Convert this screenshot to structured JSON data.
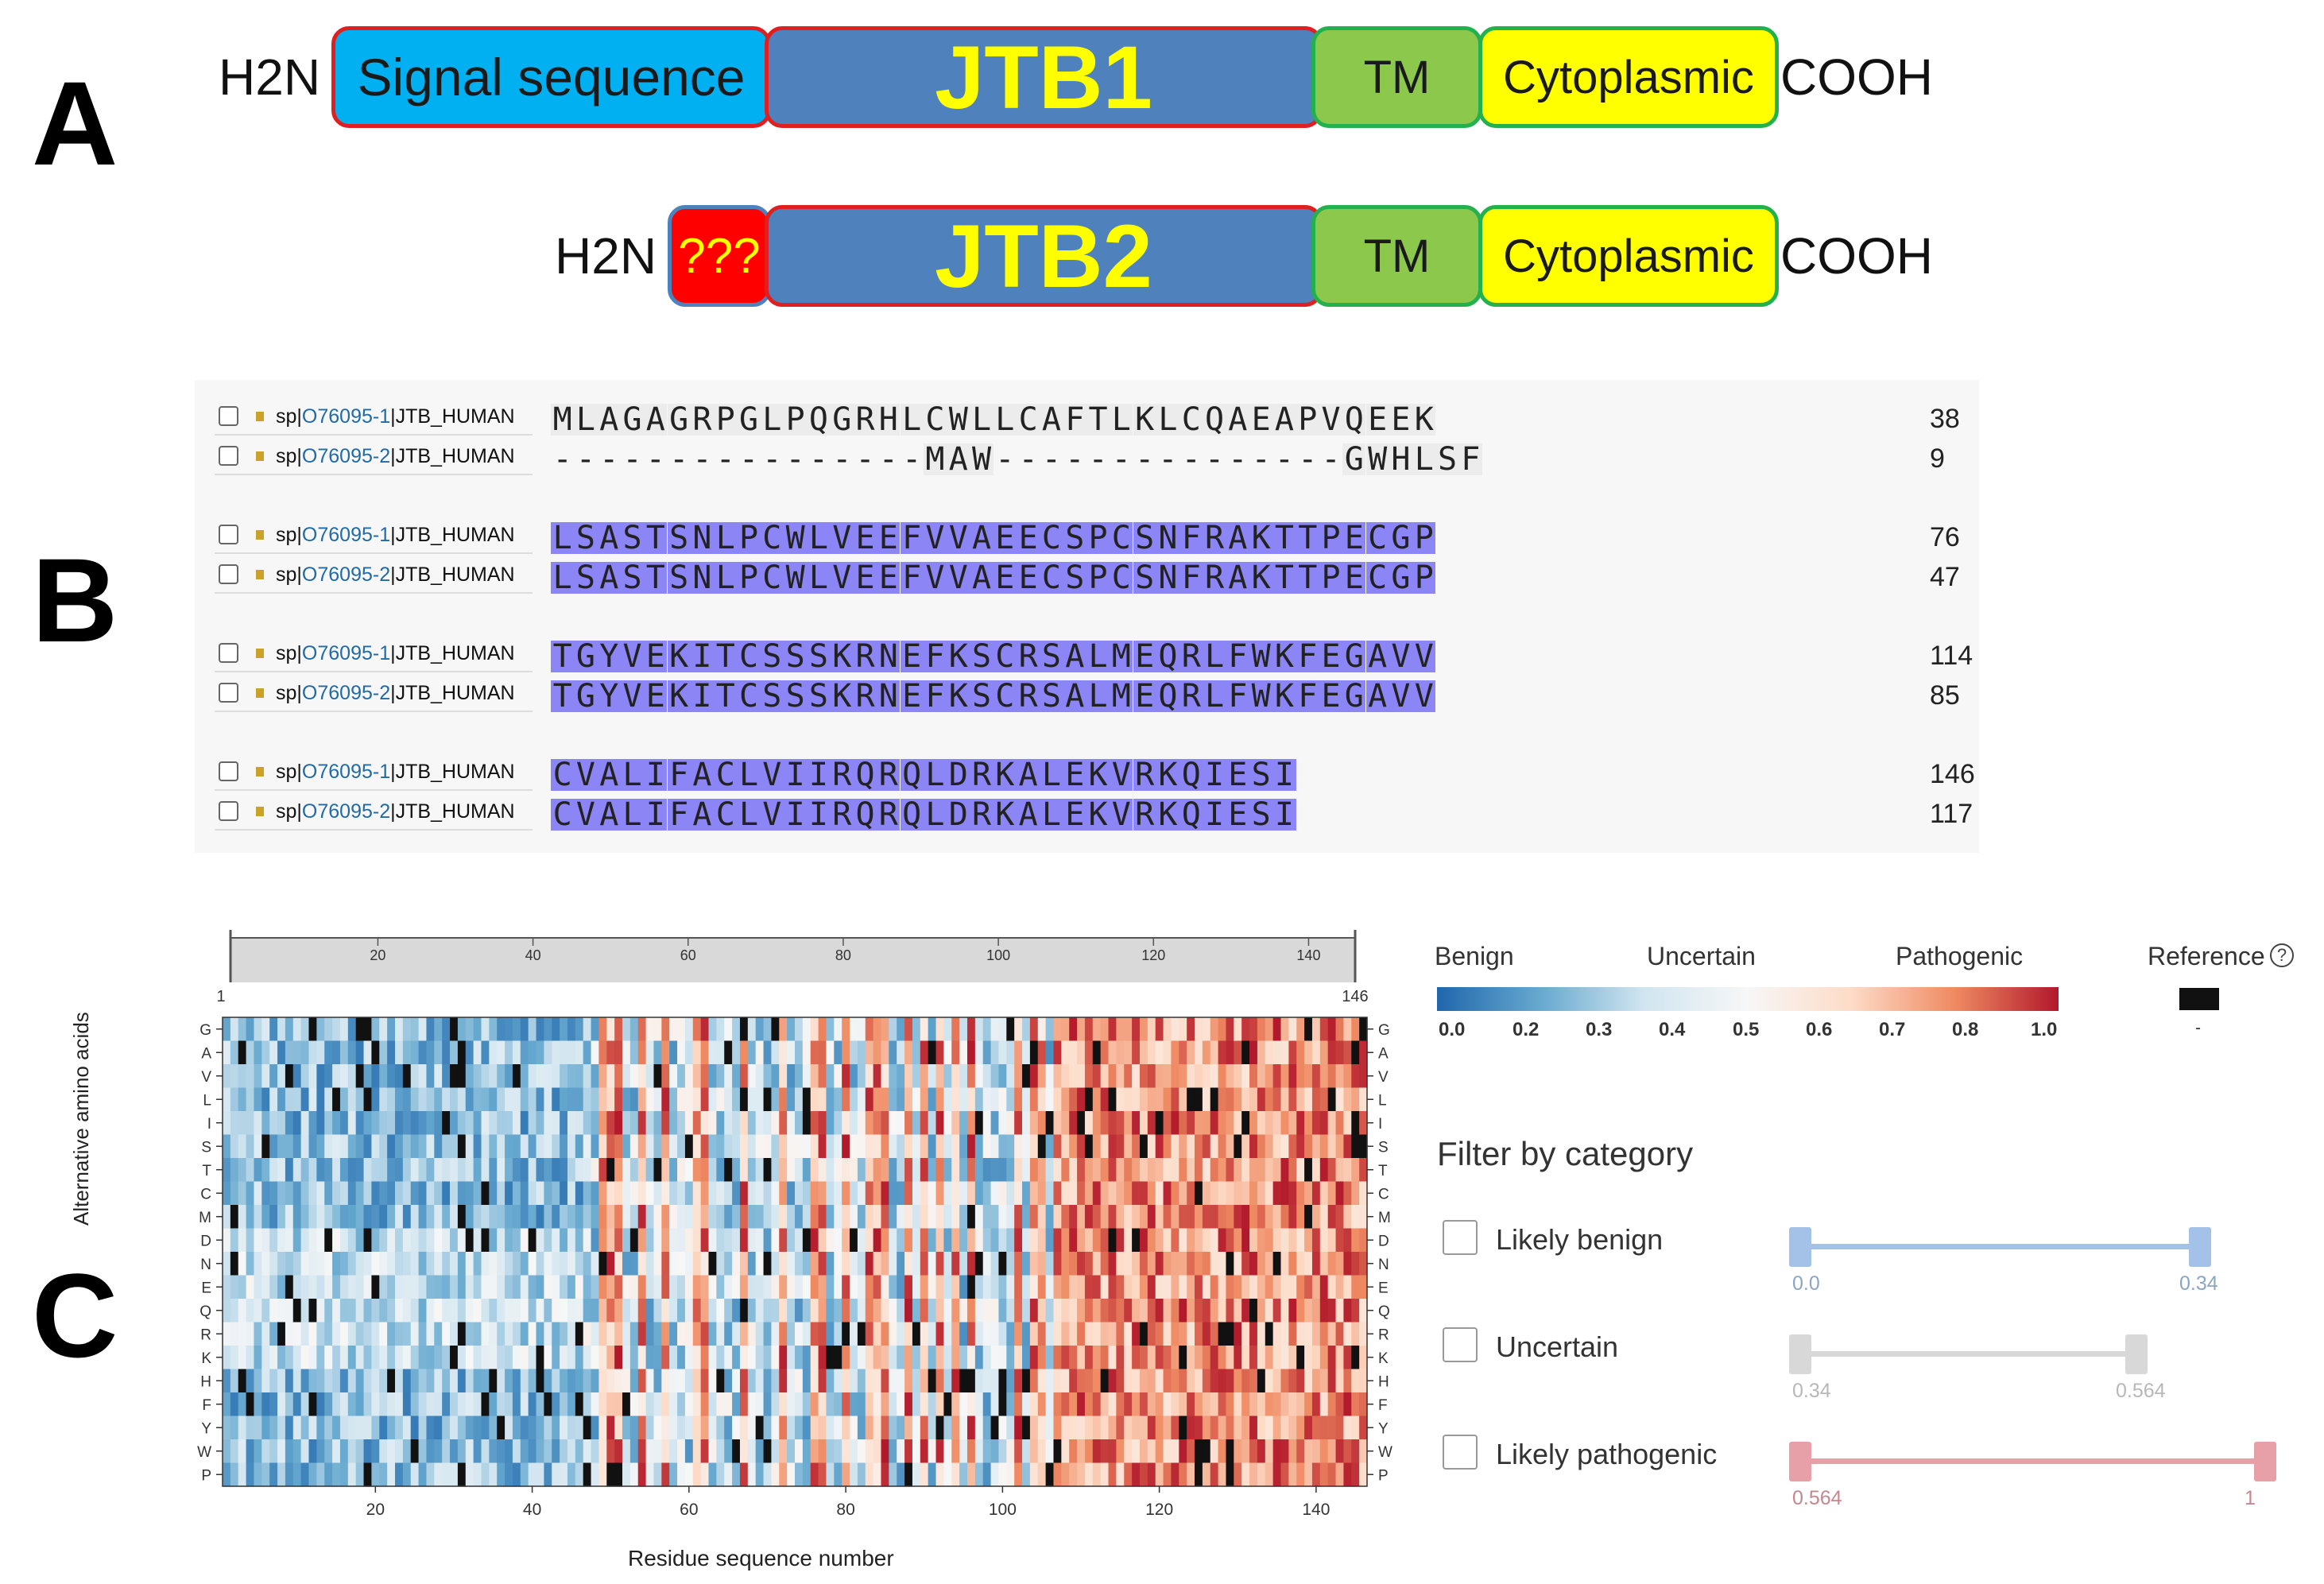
{
  "panels": {
    "a": "A",
    "b": "B",
    "c": "C"
  },
  "panel_a": {
    "n_terminus": "H2N",
    "c_terminus": "COOH",
    "jtb1": [
      {
        "label": "Signal sequence",
        "color": "#00b0f0",
        "border": "#e02020"
      },
      {
        "label": "JTB1",
        "color": "#4f81bd",
        "border": "#e02020"
      },
      {
        "label": "TM",
        "color": "#8cc84b",
        "border": "#22b14c"
      },
      {
        "label": "Cytoplasmic",
        "color": "#ffff00",
        "border": "#22b14c"
      }
    ],
    "jtb2": [
      {
        "label": "???",
        "color": "#ff0000",
        "border": "#4f81bd"
      },
      {
        "label": "JTB2",
        "color": "#4f81bd",
        "border": "#e02020"
      },
      {
        "label": "TM",
        "color": "#8cc84b",
        "border": "#22b14c"
      },
      {
        "label": "Cytoplasmic",
        "color": "#ffff00",
        "border": "#22b14c"
      }
    ]
  },
  "panel_b": {
    "highlight_color": "#8c85f5",
    "blocks": [
      {
        "rows": [
          {
            "prefix": "sp|",
            "acc": "O76095-1",
            "suffix": "|JTB_HUMAN",
            "seq": "MLAGAGRPGLPQGRHLCWLLCAFTLKLCQAEAPVQEEK",
            "end": "38"
          },
          {
            "prefix": "sp|",
            "acc": "O76095-2",
            "suffix": "|JTB_HUMAN",
            "seq": "----------------MAW---------------GWHLSF",
            "end": "9"
          }
        ]
      },
      {
        "rows": [
          {
            "prefix": "sp|",
            "acc": "O76095-1",
            "suffix": "|JTB_HUMAN",
            "seq": "LSASTSNLPCWLVEEFVVAEECSPCSNFRAKTTPECGP",
            "end": "76"
          },
          {
            "prefix": "sp|",
            "acc": "O76095-2",
            "suffix": "|JTB_HUMAN",
            "seq": "LSASTSNLPCWLVEEFVVAEECSPCSNFRAKTTPECGP",
            "end": "47"
          }
        ]
      },
      {
        "rows": [
          {
            "prefix": "sp|",
            "acc": "O76095-1",
            "suffix": "|JTB_HUMAN",
            "seq": "TGYVEKITCSSSKRNEFKSCRSALMEQRLFWKFEGAVV",
            "end": "114"
          },
          {
            "prefix": "sp|",
            "acc": "O76095-2",
            "suffix": "|JTB_HUMAN",
            "seq": "TGYVEKITCSSSKRNEFKSCRSALMEQRLFWKFEGAVV",
            "end": "85"
          }
        ]
      },
      {
        "rows": [
          {
            "prefix": "sp|",
            "acc": "O76095-1",
            "suffix": "|JTB_HUMAN",
            "seq": "CVALIFACLVIIRQRQLDRKALEKVRKQIESI",
            "end": "146"
          },
          {
            "prefix": "sp|",
            "acc": "O76095-2",
            "suffix": "|JTB_HUMAN",
            "seq": "CVALIFACLVIIRQRQLDRKALEKVRKQIESI",
            "end": "117"
          }
        ]
      }
    ]
  },
  "panel_c": {
    "chart_data": {
      "type": "heatmap",
      "xlabel": "Residue sequence number",
      "ylabel": "Alternative amino acids",
      "x_range": [
        1,
        146
      ],
      "x_ticks": [
        "20",
        "40",
        "60",
        "80",
        "100",
        "120",
        "140"
      ],
      "y_categories": [
        "G",
        "A",
        "V",
        "L",
        "I",
        "S",
        "T",
        "C",
        "M",
        "D",
        "N",
        "E",
        "Q",
        "R",
        "K",
        "H",
        "F",
        "Y",
        "W",
        "P"
      ],
      "overview_ticks": [
        "20",
        "40",
        "60",
        "80",
        "100",
        "120",
        "140"
      ],
      "overview_start": "1",
      "overview_end": "146",
      "regions": [
        {
          "from": 1,
          "to": 46,
          "level": "benign"
        },
        {
          "from": 47,
          "to": 74,
          "level": "mixed"
        },
        {
          "from": 75,
          "to": 106,
          "level": "mixed"
        },
        {
          "from": 107,
          "to": 131,
          "level": "pathogenic"
        },
        {
          "from": 132,
          "to": 146,
          "level": "pathogenic"
        }
      ]
    },
    "legend": {
      "benign": "Benign",
      "uncertain": "Uncertain",
      "pathogenic": "Pathogenic",
      "reference": "Reference",
      "help_icon": "?",
      "reference_dash": "-",
      "scale": [
        "0.0",
        "0.2",
        "0.3",
        "0.4",
        "0.5",
        "0.6",
        "0.7",
        "0.8",
        "1.0"
      ],
      "colors": [
        "#2166ac",
        "#67a9cf",
        "#d1e5f0",
        "#f7f7f7",
        "#fddbc7",
        "#ef8a62",
        "#b2182b"
      ]
    },
    "filter": {
      "title": "Filter by category",
      "items": [
        {
          "label": "Likely benign",
          "lo": "0.0",
          "hi": "0.34",
          "color": "#a4c2e8"
        },
        {
          "label": "Uncertain",
          "lo": "0.34",
          "hi": "0.564",
          "color": "#d8d8d8"
        },
        {
          "label": "Likely pathogenic",
          "lo": "0.564",
          "hi": "1",
          "color": "#e8a0a8"
        }
      ]
    }
  }
}
